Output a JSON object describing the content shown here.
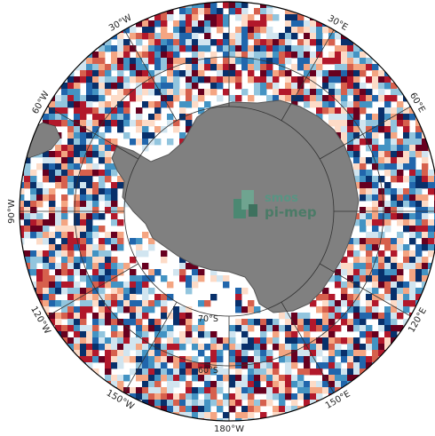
{
  "map": {
    "projection": "south-polar-stereographic",
    "longitude_labels": [
      {
        "text": "30°W",
        "deg": 30
      },
      {
        "text": "30°E",
        "deg": -30
      },
      {
        "text": "60°W",
        "deg": 60
      },
      {
        "text": "60°E",
        "deg": -60
      },
      {
        "text": "90°W",
        "deg": 90
      },
      {
        "text": "120°W",
        "deg": 120
      },
      {
        "text": "120°E",
        "deg": -120
      },
      {
        "text": "150°W",
        "deg": 150
      },
      {
        "text": "150°E",
        "deg": -150
      },
      {
        "text": "180°W",
        "deg": 180
      }
    ],
    "latitude_labels": [
      {
        "text": "70°S"
      },
      {
        "text": "60°S"
      }
    ],
    "watermark": {
      "line1": "smos",
      "line2": "pi-mep"
    },
    "colors": {
      "land": "#808080",
      "land_edge": "#555555",
      "ocean": "#ffffff",
      "grid": "#333333",
      "palette": [
        "#08306b",
        "#2166ac",
        "#4393c3",
        "#92c5de",
        "#d1e5f0",
        "#fddbc7",
        "#f4a582",
        "#d6604d",
        "#b2182b",
        "#67001f"
      ]
    }
  }
}
